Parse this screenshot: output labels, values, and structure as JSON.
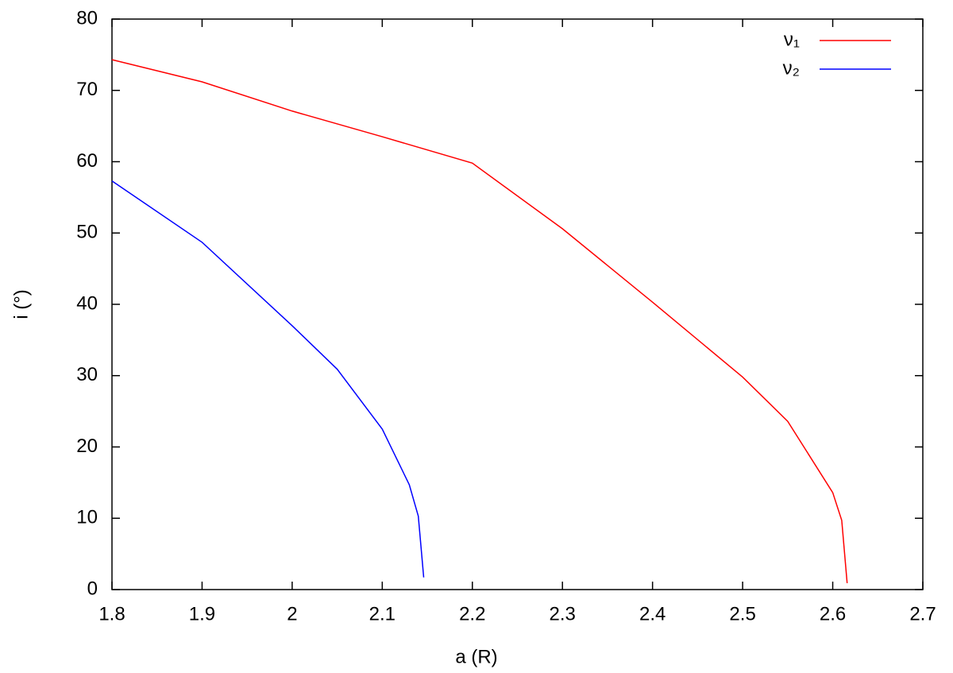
{
  "chart_data": {
    "type": "line",
    "xlabel": "a (R)",
    "ylabel": "i (°)",
    "xlim": [
      1.8,
      2.7
    ],
    "xticks": [
      1.8,
      1.9,
      2,
      2.1,
      2.2,
      2.3,
      2.4,
      2.5,
      2.6,
      2.7
    ],
    "ylim": [
      0,
      80
    ],
    "yticks": [
      0,
      10,
      20,
      30,
      40,
      50,
      60,
      70,
      80
    ],
    "legend": "top-right",
    "series": [
      {
        "name": "ν₁",
        "color": "#ff0000",
        "x": [
          1.8,
          1.9,
          2.0,
          2.1,
          2.2,
          2.3,
          2.4,
          2.5,
          2.55,
          2.6,
          2.61,
          2.616
        ],
        "values": [
          74.3,
          71.2,
          67.1,
          63.5,
          59.8,
          50.6,
          40.3,
          29.8,
          23.6,
          13.6,
          9.7,
          0.9
        ]
      },
      {
        "name": "ν₂",
        "color": "#0000ff",
        "x": [
          1.8,
          1.9,
          2.0,
          2.05,
          2.1,
          2.13,
          2.14,
          2.146
        ],
        "values": [
          57.3,
          48.7,
          37.0,
          30.9,
          22.5,
          14.7,
          10.3,
          1.7
        ]
      }
    ]
  }
}
